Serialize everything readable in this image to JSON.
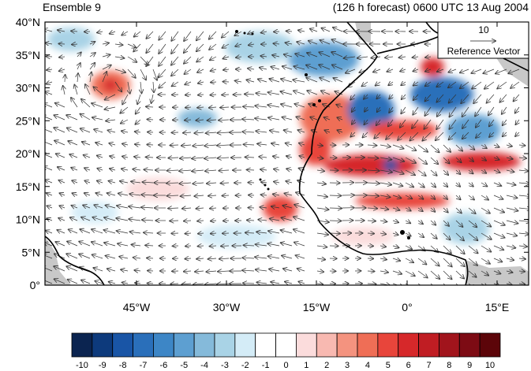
{
  "title_left": "Ensemble 9",
  "title_right": "(126 h forecast) 0600 UTC 13 Aug 2004",
  "lat_labels": [
    "40°N",
    "35°N",
    "30°N",
    "25°N",
    "20°N",
    "15°N",
    "10°N",
    "5°N",
    "0°"
  ],
  "lon_labels": [
    "45°W",
    "30°W",
    "15°W",
    "0°",
    "15°E"
  ],
  "reference_vector": {
    "magnitude": "10",
    "label": "Reference Vector"
  },
  "colorbar": {
    "labels": [
      "-10",
      "-9",
      "-8",
      "-7",
      "-6",
      "-5",
      "-4",
      "-3",
      "-2",
      "-1",
      "0",
      "1",
      "2",
      "3",
      "4",
      "5",
      "6",
      "7",
      "8",
      "9",
      "10"
    ],
    "colors": [
      "#0b2450",
      "#0d3a7c",
      "#1955a6",
      "#2a6fba",
      "#3d86c6",
      "#5d9fd1",
      "#85bada",
      "#a9d3e6",
      "#d4ecf7",
      "#ffffff",
      "#ffffff",
      "#fbdcdc",
      "#f8b9b1",
      "#f4937f",
      "#ef6e56",
      "#e8453b",
      "#d6282a",
      "#c01d23",
      "#a1141c",
      "#7d0b14",
      "#5c0509"
    ]
  },
  "map_colors": {
    "land_border": "#000000",
    "missing": "#c8c8c8"
  }
}
